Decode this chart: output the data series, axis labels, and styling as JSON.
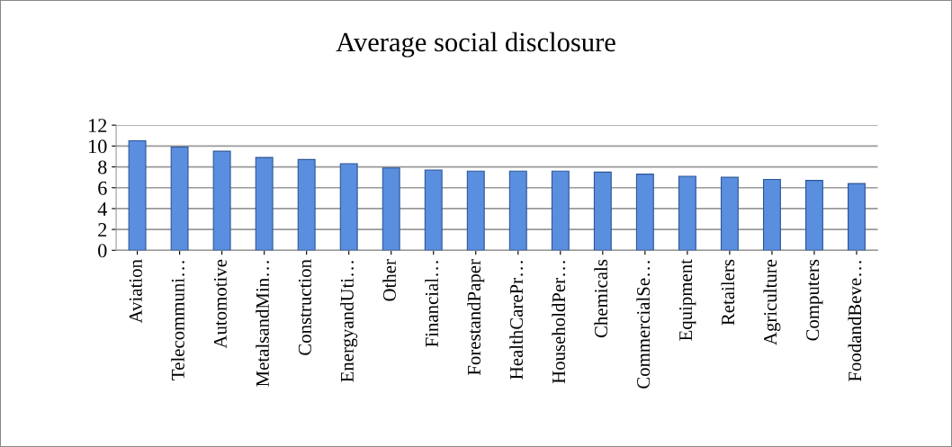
{
  "chart_data": {
    "type": "bar",
    "title": "Average social disclosure",
    "categories": [
      "Aviation",
      "Telecommuni…",
      "Automotive",
      "MetalsandMin…",
      "Construction",
      "EnergyandUti…",
      "Other",
      "Financial…",
      "ForestandPaper",
      "HealthCarePr…",
      "HouseholdPer…",
      "Chemicals",
      "CommercialSe…",
      "Equipment",
      "Retailers",
      "Agriculture",
      "Computers",
      "FoodandBeve…"
    ],
    "values": [
      10.5,
      9.9,
      9.5,
      8.9,
      8.7,
      8.3,
      7.9,
      7.7,
      7.6,
      7.6,
      7.6,
      7.5,
      7.3,
      7.1,
      7.0,
      6.8,
      6.7,
      6.4
    ],
    "color": "#5a8ede",
    "ylim": [
      0,
      12
    ],
    "yticks": [
      0,
      2,
      4,
      6,
      8,
      10,
      12
    ],
    "grid": "y",
    "legend": false
  }
}
